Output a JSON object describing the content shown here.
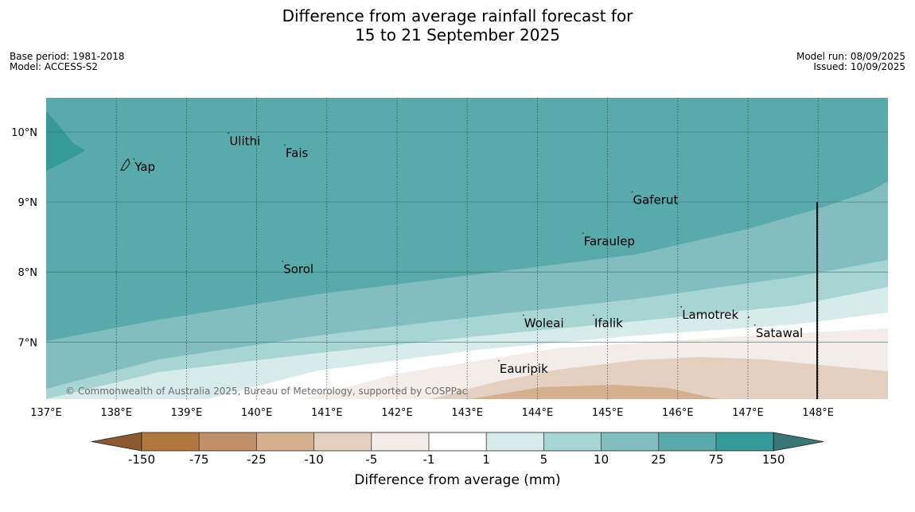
{
  "title": {
    "line1": "Difference from average rainfall forecast for",
    "line2": "15 to 21 September 2025"
  },
  "meta_left": {
    "base_period": "Base period: 1981-2018",
    "model": "Model: ACCESS-S2"
  },
  "meta_right": {
    "model_run": "Model run: 08/09/2025",
    "issued": "Issued: 10/09/2025"
  },
  "map": {
    "lon_range": [
      137,
      149
    ],
    "lat_range": [
      6.2,
      10.5
    ],
    "lon_ticks": [
      {
        "value": 137,
        "label": "137°E"
      },
      {
        "value": 138,
        "label": "138°E"
      },
      {
        "value": 139,
        "label": "139°E"
      },
      {
        "value": 140,
        "label": "140°E"
      },
      {
        "value": 141,
        "label": "141°E"
      },
      {
        "value": 142,
        "label": "142°E"
      },
      {
        "value": 143,
        "label": "143°E"
      },
      {
        "value": 144,
        "label": "144°E"
      },
      {
        "value": 145,
        "label": "145°E"
      },
      {
        "value": 146,
        "label": "146°E"
      },
      {
        "value": 147,
        "label": "147°E"
      },
      {
        "value": 148,
        "label": "148°E"
      }
    ],
    "lat_ticks": [
      {
        "value": 10,
        "label": "10°N"
      },
      {
        "value": 9,
        "label": "9°N"
      },
      {
        "value": 8,
        "label": "8°N"
      },
      {
        "value": 7,
        "label": "7°N"
      }
    ],
    "places": [
      {
        "name": "Yap",
        "lon": 138.25,
        "lat": 9.5
      },
      {
        "name": "Ulithi",
        "lon": 139.6,
        "lat": 9.87
      },
      {
        "name": "Fais",
        "lon": 140.4,
        "lat": 9.7
      },
      {
        "name": "Gaferut",
        "lon": 145.35,
        "lat": 9.03
      },
      {
        "name": "Faraulep",
        "lon": 144.65,
        "lat": 8.44
      },
      {
        "name": "Sorol",
        "lon": 140.37,
        "lat": 8.04
      },
      {
        "name": "Woleai",
        "lon": 143.8,
        "lat": 7.27
      },
      {
        "name": "Ifalik",
        "lon": 144.8,
        "lat": 7.27
      },
      {
        "name": "Lamotrek",
        "lon": 146.05,
        "lat": 7.39
      },
      {
        "name": "Satawal",
        "lon": 147.1,
        "lat": 7.13
      },
      {
        "name": "Eauripik",
        "lon": 143.45,
        "lat": 6.62
      }
    ],
    "copyright": "© Commonwealth of Australia 2025, Bureau of Meteorology, supported by COSPPac"
  },
  "colorbar": {
    "ticks": [
      "-150",
      "-75",
      "-25",
      "-10",
      "-5",
      "-1",
      "1",
      "5",
      "10",
      "25",
      "75",
      "150"
    ],
    "label": "Difference from average (mm)",
    "colors": {
      "lt_neg150": "#8c5a2e",
      "neg150_neg75": "#b07840",
      "neg75_neg25": "#c09068",
      "neg25_neg10": "#d4b090",
      "neg10_neg5": "#e4d0c0",
      "neg5_neg1": "#f4ece8",
      "neg1_1": "#ffffff",
      "p1_5": "#d6ebea",
      "p5_10": "#a8d4d4",
      "p10_25": "#82bec0",
      "p25_75": "#5aaaac",
      "p75_150": "#359a9a",
      "gt150": "#3a7676"
    }
  }
}
